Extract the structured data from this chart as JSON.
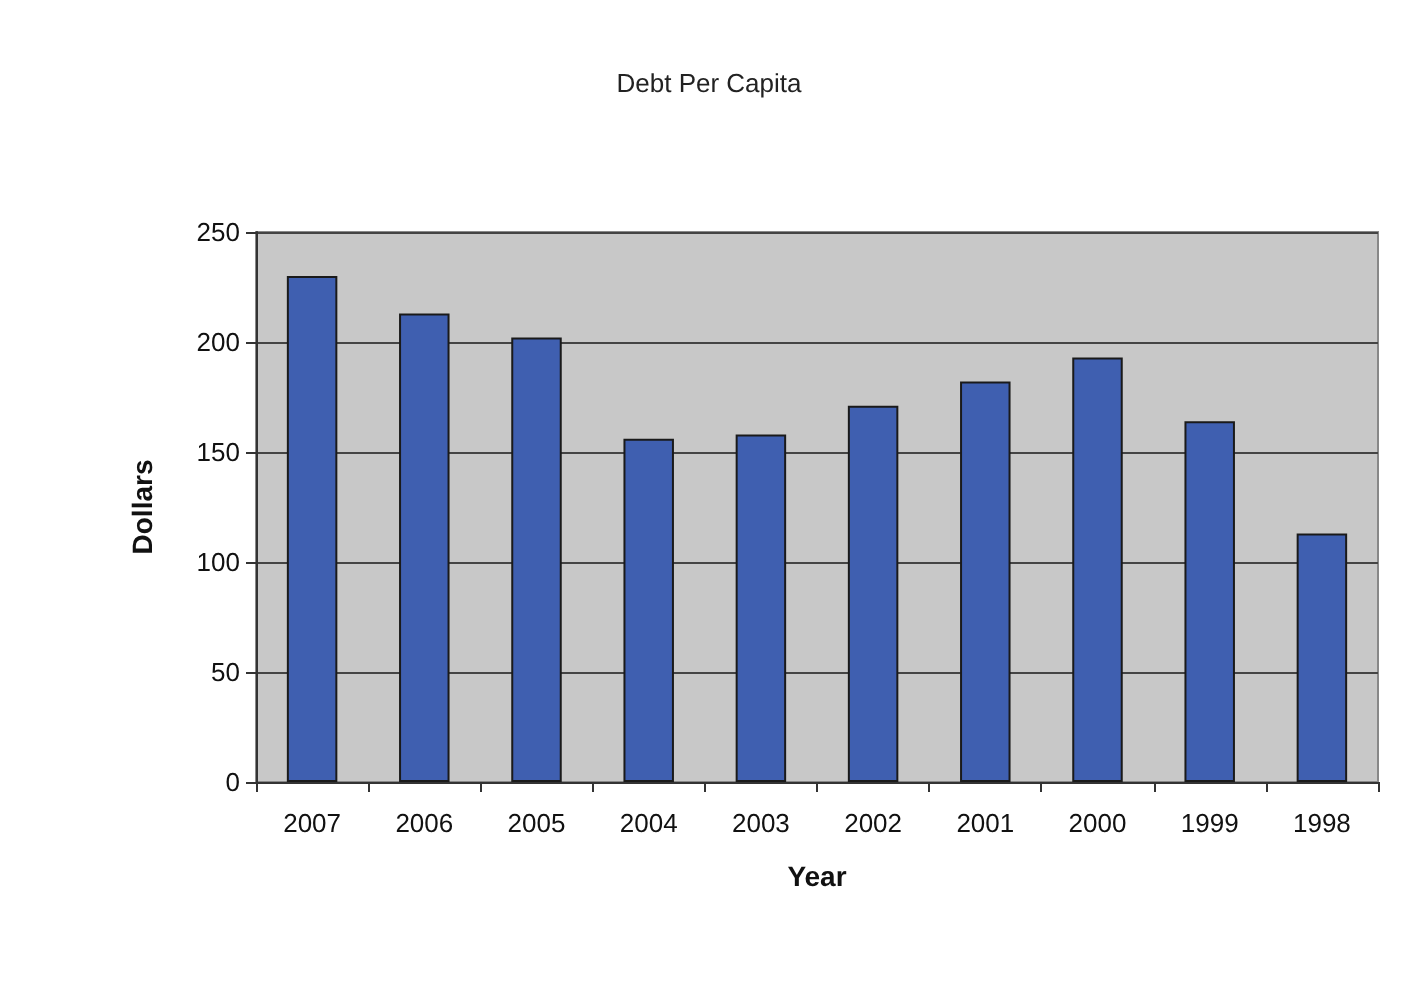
{
  "chart_data": {
    "type": "bar",
    "title": "Debt Per Capita",
    "xlabel": "Year",
    "ylabel": "Dollars",
    "categories": [
      "2007",
      "2006",
      "2005",
      "2004",
      "2003",
      "2002",
      "2001",
      "2000",
      "1999",
      "1998"
    ],
    "values": [
      230,
      213,
      202,
      156,
      158,
      171,
      182,
      193,
      164,
      113
    ],
    "color": "#3f5fb0",
    "ylim": [
      0,
      250
    ],
    "yticks": [
      0,
      50,
      100,
      150,
      200,
      250
    ],
    "grid": "y"
  }
}
